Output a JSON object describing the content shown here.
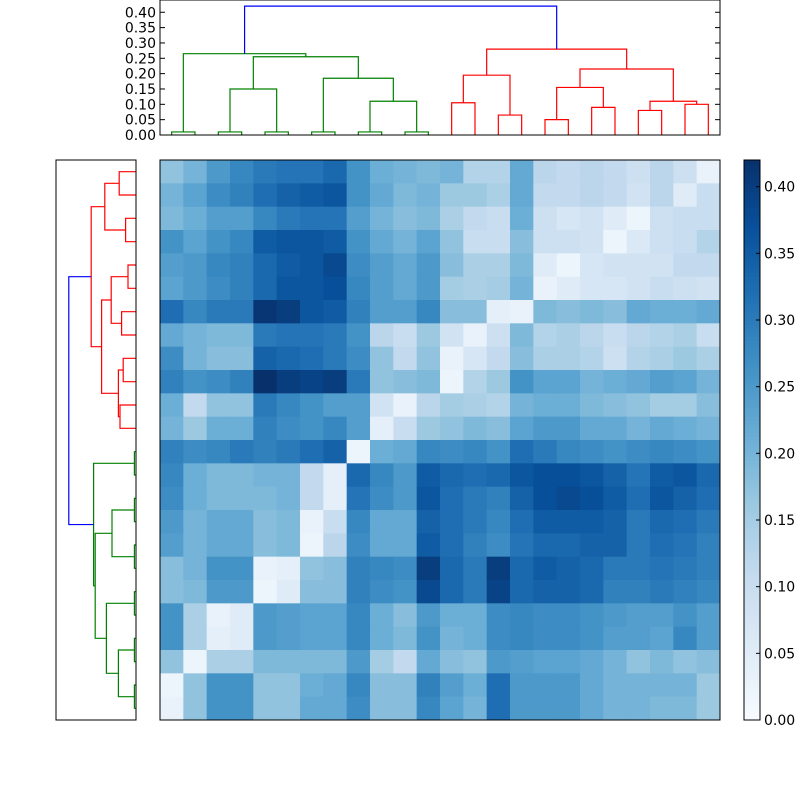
{
  "chart_data": {
    "type": "heatmap",
    "title": "",
    "n": 24,
    "colormap": "Blues",
    "colorbar": {
      "min": 0.0,
      "max": 0.42,
      "ticks": [
        "0.00",
        "0.05",
        "0.10",
        "0.15",
        "0.20",
        "0.25",
        "0.30",
        "0.35",
        "0.40"
      ]
    },
    "top_dendrogram": {
      "axis_range": [
        0,
        0.44
      ],
      "ticks": [
        "0.00",
        "0.05",
        "0.10",
        "0.15",
        "0.20",
        "0.25",
        "0.30",
        "0.35",
        "0.40"
      ],
      "green_cluster_height": 0.265,
      "red_cluster_height": 0.28,
      "root_height": 0.42
    },
    "left_dendrogram": {
      "green_cluster_height": 0.265,
      "red_cluster_height": 0.28,
      "root_height": 0.42
    },
    "colors": {
      "green": "#008000",
      "red": "#ff0000",
      "blue": "#0000ff"
    },
    "matrix": [
      [
        0.17,
        0.2,
        0.25,
        0.28,
        0.3,
        0.31,
        0.31,
        0.33,
        0.26,
        0.21,
        0.2,
        0.19,
        0.2,
        0.13,
        0.13,
        0.22,
        0.12,
        0.11,
        0.12,
        0.11,
        0.09,
        0.12,
        0.09,
        0.03
      ],
      [
        0.2,
        0.23,
        0.27,
        0.29,
        0.32,
        0.34,
        0.35,
        0.36,
        0.26,
        0.22,
        0.19,
        0.2,
        0.16,
        0.16,
        0.14,
        0.22,
        0.11,
        0.11,
        0.12,
        0.11,
        0.08,
        0.12,
        0.05,
        0.1
      ],
      [
        0.19,
        0.21,
        0.24,
        0.24,
        0.28,
        0.3,
        0.31,
        0.31,
        0.24,
        0.2,
        0.18,
        0.19,
        0.14,
        0.11,
        0.1,
        0.21,
        0.09,
        0.07,
        0.08,
        0.05,
        0.02,
        0.09,
        0.1,
        0.1
      ],
      [
        0.26,
        0.23,
        0.26,
        0.28,
        0.35,
        0.36,
        0.36,
        0.35,
        0.26,
        0.22,
        0.2,
        0.23,
        0.17,
        0.1,
        0.1,
        0.18,
        0.09,
        0.09,
        0.08,
        0.02,
        0.06,
        0.09,
        0.1,
        0.13
      ],
      [
        0.24,
        0.25,
        0.28,
        0.29,
        0.33,
        0.35,
        0.36,
        0.38,
        0.27,
        0.24,
        0.22,
        0.25,
        0.18,
        0.14,
        0.14,
        0.19,
        0.05,
        0.02,
        0.07,
        0.08,
        0.08,
        0.08,
        0.11,
        0.11
      ],
      [
        0.23,
        0.25,
        0.27,
        0.29,
        0.33,
        0.36,
        0.36,
        0.37,
        0.28,
        0.24,
        0.22,
        0.25,
        0.15,
        0.14,
        0.15,
        0.2,
        0.03,
        0.05,
        0.07,
        0.07,
        0.08,
        0.1,
        0.09,
        0.08
      ],
      [
        0.32,
        0.28,
        0.3,
        0.3,
        0.41,
        0.4,
        0.36,
        0.35,
        0.29,
        0.24,
        0.24,
        0.28,
        0.18,
        0.18,
        0.04,
        0.03,
        0.19,
        0.18,
        0.19,
        0.18,
        0.22,
        0.21,
        0.21,
        0.22
      ],
      [
        0.22,
        0.2,
        0.19,
        0.19,
        0.3,
        0.31,
        0.31,
        0.3,
        0.26,
        0.12,
        0.1,
        0.16,
        0.08,
        0.03,
        0.09,
        0.19,
        0.13,
        0.14,
        0.12,
        0.1,
        0.12,
        0.13,
        0.14,
        0.1
      ],
      [
        0.27,
        0.2,
        0.18,
        0.18,
        0.34,
        0.33,
        0.32,
        0.3,
        0.27,
        0.17,
        0.11,
        0.17,
        0.03,
        0.07,
        0.11,
        0.18,
        0.14,
        0.14,
        0.13,
        0.09,
        0.13,
        0.14,
        0.16,
        0.14
      ],
      [
        0.29,
        0.26,
        0.27,
        0.29,
        0.42,
        0.4,
        0.39,
        0.4,
        0.3,
        0.17,
        0.18,
        0.19,
        0.02,
        0.13,
        0.16,
        0.26,
        0.23,
        0.23,
        0.2,
        0.21,
        0.22,
        0.24,
        0.23,
        0.2
      ],
      [
        0.21,
        0.11,
        0.17,
        0.17,
        0.3,
        0.28,
        0.26,
        0.24,
        0.24,
        0.08,
        0.03,
        0.12,
        0.15,
        0.14,
        0.13,
        0.2,
        0.21,
        0.21,
        0.19,
        0.18,
        0.17,
        0.15,
        0.15,
        0.18
      ],
      [
        0.2,
        0.16,
        0.21,
        0.21,
        0.29,
        0.27,
        0.26,
        0.28,
        0.24,
        0.04,
        0.1,
        0.16,
        0.17,
        0.19,
        0.18,
        0.23,
        0.25,
        0.25,
        0.22,
        0.22,
        0.2,
        0.22,
        0.21,
        0.2
      ],
      [
        0.29,
        0.27,
        0.28,
        0.3,
        0.29,
        0.3,
        0.32,
        0.34,
        0.02,
        0.21,
        0.22,
        0.28,
        0.27,
        0.28,
        0.26,
        0.32,
        0.3,
        0.28,
        0.27,
        0.26,
        0.27,
        0.28,
        0.27,
        0.26
      ],
      [
        0.28,
        0.21,
        0.19,
        0.19,
        0.2,
        0.2,
        0.11,
        0.04,
        0.33,
        0.28,
        0.25,
        0.35,
        0.33,
        0.32,
        0.33,
        0.36,
        0.37,
        0.37,
        0.36,
        0.34,
        0.31,
        0.35,
        0.36,
        0.33
      ],
      [
        0.27,
        0.21,
        0.19,
        0.19,
        0.19,
        0.2,
        0.11,
        0.04,
        0.31,
        0.27,
        0.25,
        0.36,
        0.32,
        0.3,
        0.29,
        0.34,
        0.37,
        0.38,
        0.37,
        0.35,
        0.32,
        0.36,
        0.34,
        0.32
      ],
      [
        0.25,
        0.2,
        0.22,
        0.22,
        0.18,
        0.19,
        0.03,
        0.1,
        0.28,
        0.22,
        0.22,
        0.34,
        0.32,
        0.3,
        0.28,
        0.32,
        0.35,
        0.35,
        0.35,
        0.34,
        0.3,
        0.33,
        0.32,
        0.3
      ],
      [
        0.24,
        0.2,
        0.22,
        0.22,
        0.18,
        0.19,
        0.02,
        0.12,
        0.27,
        0.22,
        0.22,
        0.35,
        0.32,
        0.29,
        0.27,
        0.31,
        0.33,
        0.33,
        0.34,
        0.34,
        0.3,
        0.32,
        0.31,
        0.29
      ],
      [
        0.18,
        0.2,
        0.26,
        0.26,
        0.03,
        0.04,
        0.17,
        0.18,
        0.29,
        0.28,
        0.27,
        0.4,
        0.33,
        0.3,
        0.4,
        0.33,
        0.35,
        0.34,
        0.33,
        0.3,
        0.3,
        0.31,
        0.3,
        0.29
      ],
      [
        0.18,
        0.19,
        0.25,
        0.25,
        0.02,
        0.05,
        0.18,
        0.18,
        0.29,
        0.27,
        0.26,
        0.38,
        0.33,
        0.3,
        0.39,
        0.33,
        0.34,
        0.34,
        0.33,
        0.29,
        0.29,
        0.3,
        0.29,
        0.28
      ],
      [
        0.26,
        0.14,
        0.03,
        0.05,
        0.25,
        0.24,
        0.23,
        0.23,
        0.28,
        0.21,
        0.18,
        0.25,
        0.21,
        0.21,
        0.27,
        0.28,
        0.27,
        0.27,
        0.26,
        0.25,
        0.24,
        0.24,
        0.26,
        0.24
      ],
      [
        0.26,
        0.14,
        0.04,
        0.05,
        0.25,
        0.24,
        0.23,
        0.23,
        0.28,
        0.21,
        0.19,
        0.26,
        0.2,
        0.21,
        0.27,
        0.28,
        0.27,
        0.27,
        0.26,
        0.24,
        0.24,
        0.23,
        0.28,
        0.24
      ],
      [
        0.17,
        0.02,
        0.14,
        0.14,
        0.19,
        0.19,
        0.19,
        0.19,
        0.25,
        0.15,
        0.11,
        0.22,
        0.18,
        0.17,
        0.25,
        0.24,
        0.23,
        0.23,
        0.22,
        0.2,
        0.17,
        0.19,
        0.17,
        0.18
      ],
      [
        0.02,
        0.17,
        0.26,
        0.26,
        0.17,
        0.17,
        0.21,
        0.22,
        0.28,
        0.18,
        0.18,
        0.29,
        0.24,
        0.21,
        0.32,
        0.25,
        0.25,
        0.25,
        0.22,
        0.2,
        0.2,
        0.2,
        0.2,
        0.16
      ],
      [
        0.03,
        0.17,
        0.26,
        0.26,
        0.17,
        0.17,
        0.22,
        0.22,
        0.27,
        0.18,
        0.18,
        0.28,
        0.23,
        0.2,
        0.32,
        0.25,
        0.25,
        0.25,
        0.22,
        0.2,
        0.2,
        0.19,
        0.19,
        0.16
      ]
    ]
  }
}
